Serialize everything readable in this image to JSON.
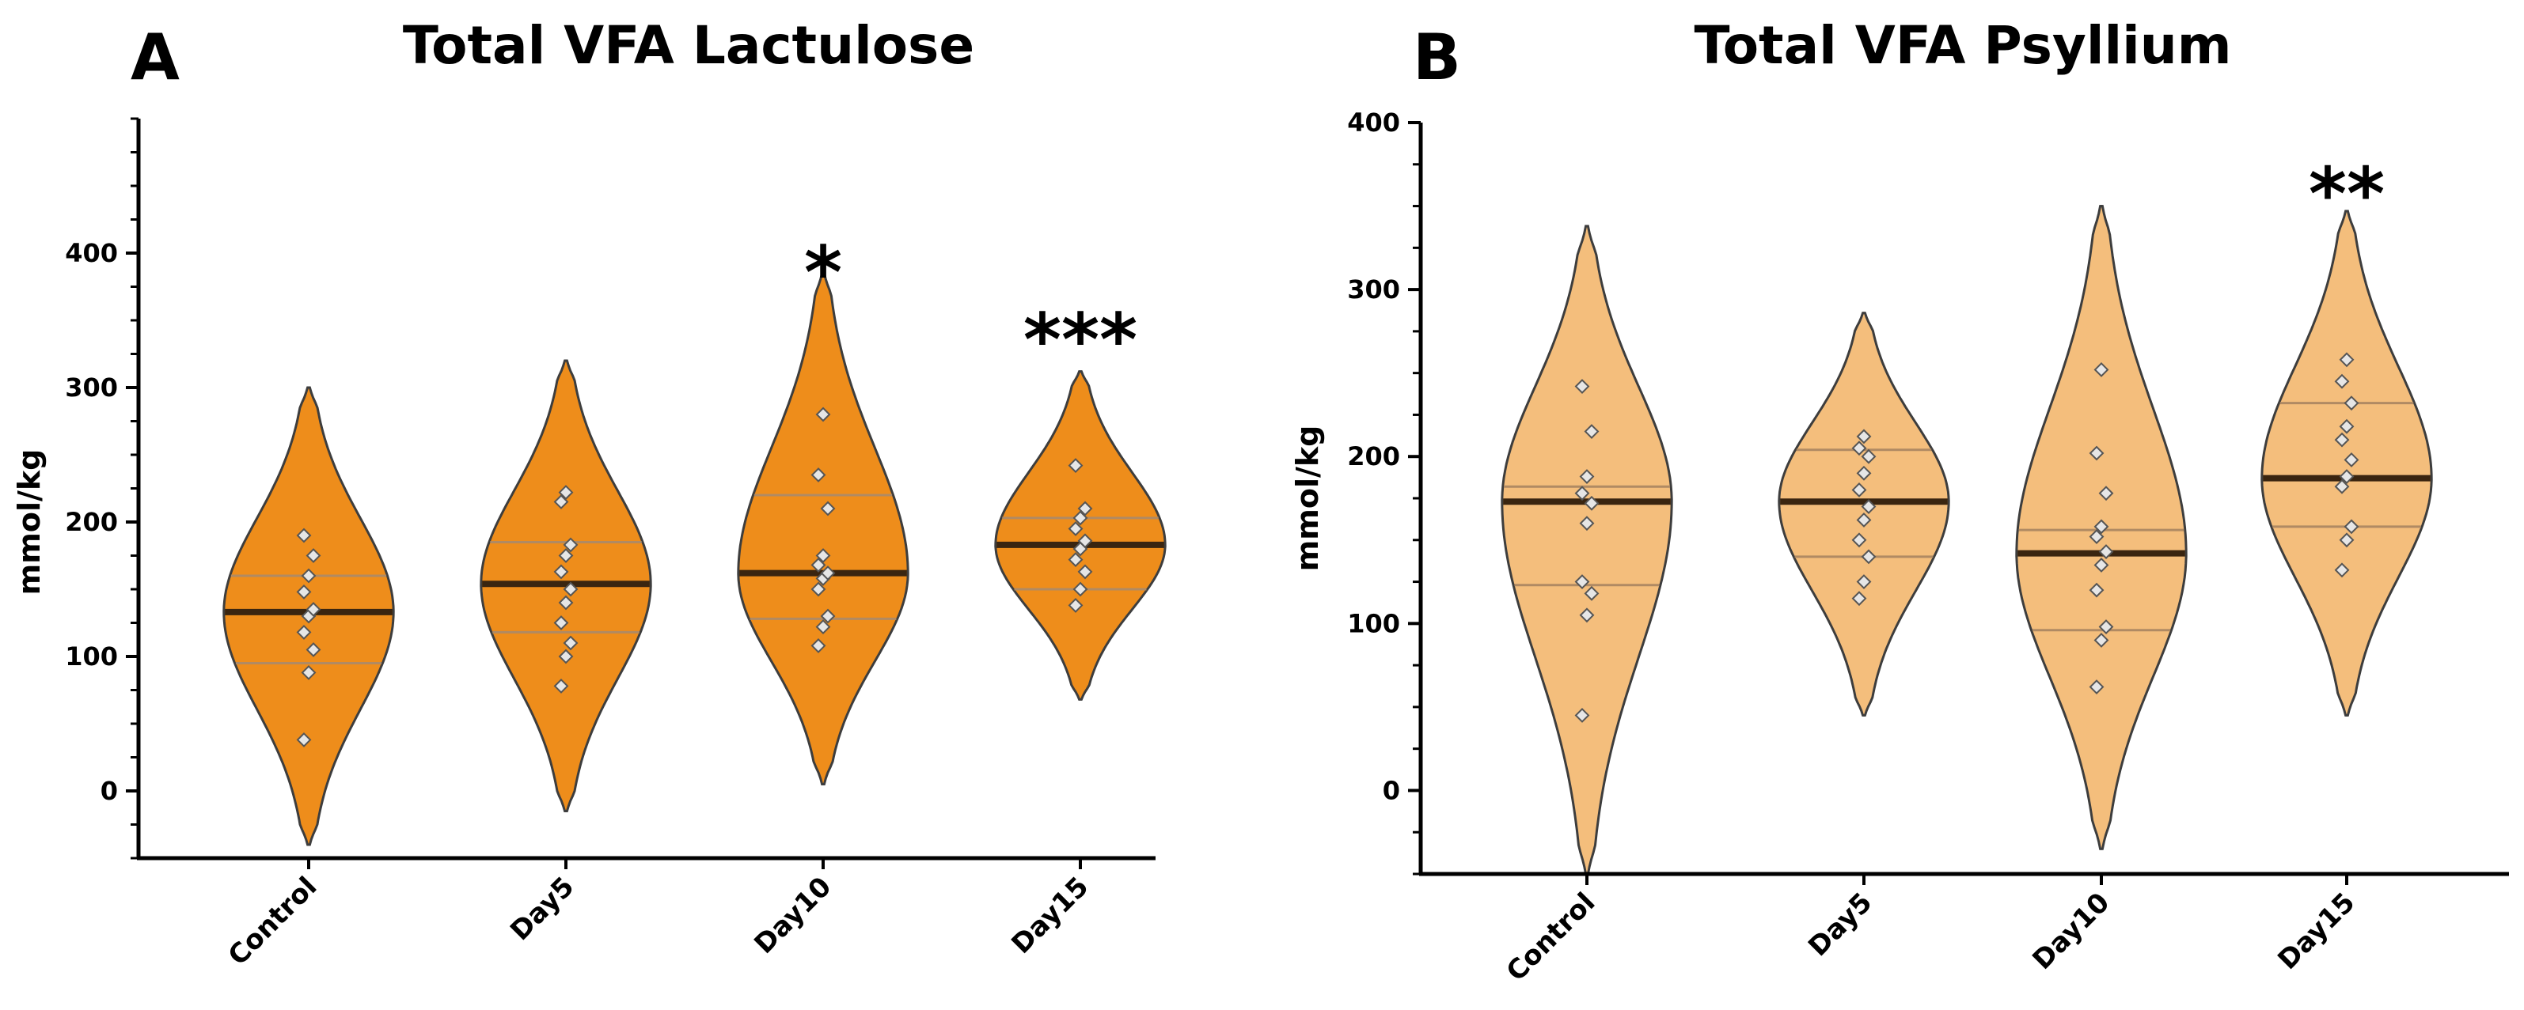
{
  "chart_data": [
    {
      "panel": "A",
      "type": "violin",
      "title": "Total VFA Lactulose",
      "ylabel": "mmol/kg",
      "xlabel": "",
      "ylim": [
        -50,
        500
      ],
      "yticks": [
        0,
        100,
        200,
        300,
        400
      ],
      "categories": [
        "Control",
        "Day5",
        "Day10",
        "Day15"
      ],
      "fill_color": "#EE8D1B",
      "groups": [
        {
          "name": "Control",
          "min": -40,
          "max": 300,
          "median": 133,
          "q1": 95,
          "q3": 160,
          "points": [
            38,
            88,
            105,
            118,
            130,
            135,
            148,
            160,
            175,
            190
          ]
        },
        {
          "name": "Day5",
          "min": -15,
          "max": 320,
          "median": 154,
          "q1": 118,
          "q3": 185,
          "points": [
            78,
            100,
            110,
            125,
            140,
            150,
            163,
            175,
            183,
            215,
            222
          ]
        },
        {
          "name": "Day10",
          "min": 5,
          "max": 385,
          "median": 162,
          "q1": 128,
          "q3": 220,
          "points": [
            108,
            122,
            130,
            150,
            158,
            162,
            168,
            175,
            210,
            235,
            280
          ]
        },
        {
          "name": "Day15",
          "min": 68,
          "max": 312,
          "median": 183,
          "q1": 150,
          "q3": 203,
          "points": [
            138,
            150,
            163,
            172,
            180,
            186,
            195,
            203,
            210,
            242
          ]
        }
      ],
      "significance": [
        {
          "category": "Day10",
          "label": "*",
          "y": 395
        },
        {
          "category": "Day15",
          "label": "***",
          "y": 345
        }
      ]
    },
    {
      "panel": "B",
      "type": "violin",
      "title": "Total VFA Psyllium",
      "ylabel": "mmol/kg",
      "xlabel": "",
      "ylim": [
        -50,
        400
      ],
      "yticks": [
        0,
        100,
        200,
        300,
        400
      ],
      "categories": [
        "Control",
        "Day5",
        "Day10",
        "Day15"
      ],
      "fill_color": "#F4BE7C",
      "groups": [
        {
          "name": "Control",
          "min": -50,
          "max": 338,
          "median": 173,
          "q1": 123,
          "q3": 182,
          "points": [
            45,
            105,
            118,
            125,
            160,
            172,
            178,
            188,
            215,
            242
          ]
        },
        {
          "name": "Day5",
          "min": 45,
          "max": 286,
          "median": 173,
          "q1": 140,
          "q3": 204,
          "points": [
            115,
            125,
            140,
            150,
            162,
            170,
            180,
            190,
            200,
            205,
            212
          ]
        },
        {
          "name": "Day10",
          "min": -35,
          "max": 350,
          "median": 142,
          "q1": 96,
          "q3": 156,
          "points": [
            62,
            90,
            98,
            120,
            135,
            143,
            152,
            158,
            178,
            202,
            252
          ]
        },
        {
          "name": "Day15",
          "min": 45,
          "max": 347,
          "median": 187,
          "q1": 158,
          "q3": 232,
          "points": [
            132,
            150,
            158,
            182,
            188,
            198,
            210,
            218,
            232,
            245,
            258
          ]
        }
      ],
      "significance": [
        {
          "category": "Day15",
          "label": "**",
          "y": 365
        }
      ]
    }
  ]
}
